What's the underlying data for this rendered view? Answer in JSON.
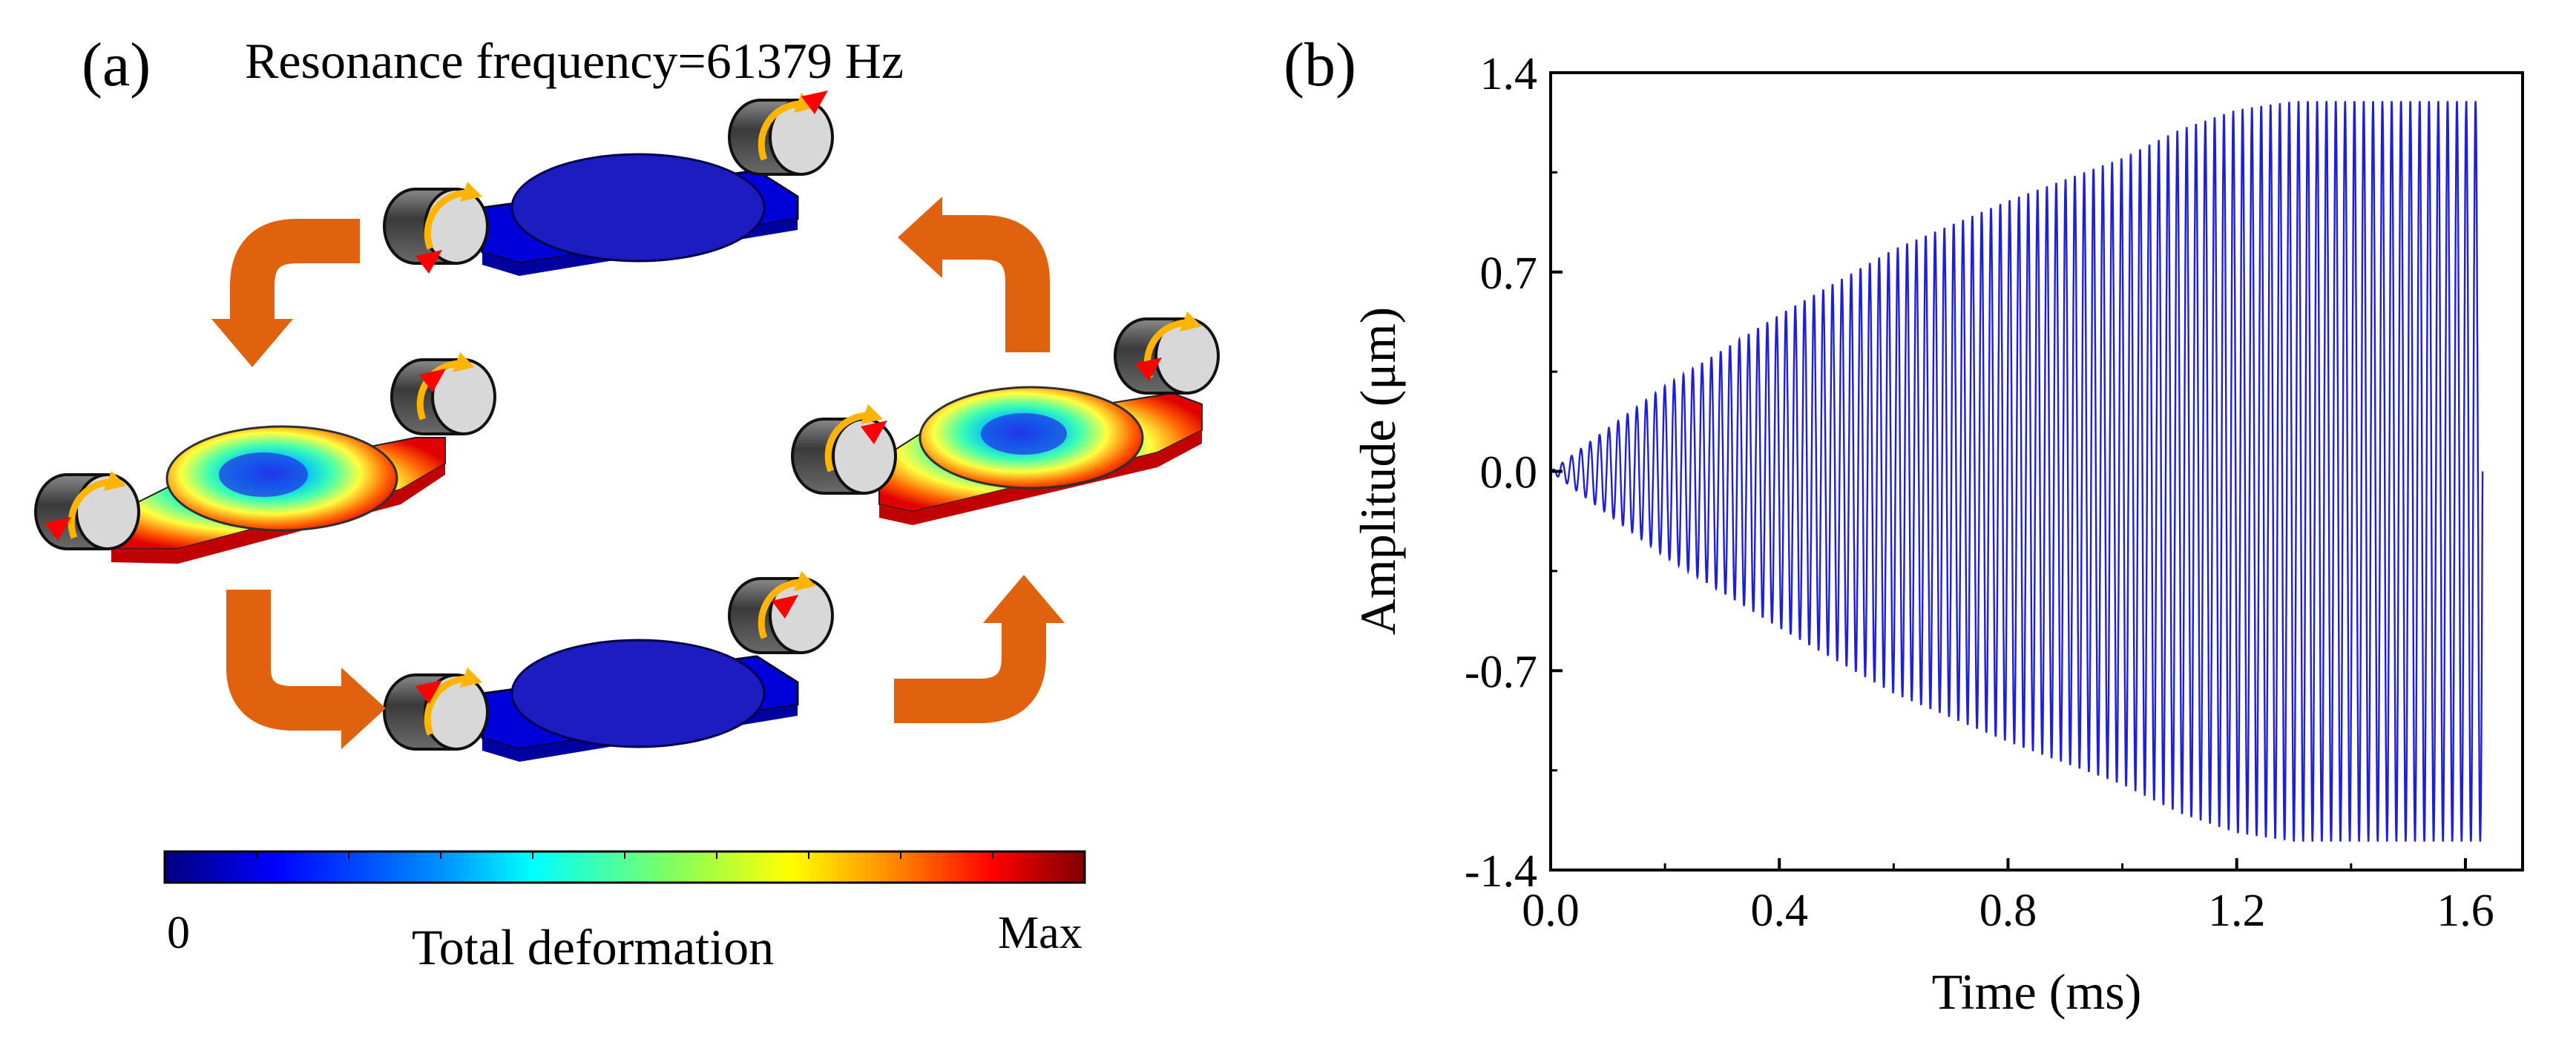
{
  "panel_a": {
    "label": "(a)",
    "title": "Resonance frequency=61379 Hz",
    "colorbar": {
      "min_label": "0",
      "max_label": "Max",
      "title": "Total deformation",
      "colors": [
        "#00007f",
        "#0000ff",
        "#0080ff",
        "#00ffff",
        "#80ff80",
        "#ffff00",
        "#ff8000",
        "#ff0000",
        "#7f0000"
      ]
    },
    "accent_colors": {
      "arrow": "#e0620e",
      "rotation_yellow": "#ffb400",
      "rotation_red": "#ff0000",
      "roller": "#4a4a4a"
    }
  },
  "panel_b": {
    "label": "(b)"
  },
  "chart_data": {
    "type": "line",
    "title": "",
    "xlabel": "Time (ms)",
    "ylabel": "Amplitude (μm)",
    "xlim": [
      0.0,
      1.7
    ],
    "ylim": [
      -1.4,
      1.4
    ],
    "xticks": [
      "0.0",
      "0.4",
      "0.8",
      "1.2",
      "1.6"
    ],
    "yticks": [
      "-1.4",
      "-0.7",
      "0.0",
      "0.7",
      "1.4"
    ],
    "series": [
      {
        "name": "Amplitude",
        "color": "#1f1fd6",
        "description": "oscillation with growing envelope",
        "t_end_ms": 1.63,
        "oscillation_cycles": 100,
        "envelope": {
          "t": [
            0.0,
            0.2,
            0.4,
            0.6,
            0.8,
            1.0,
            1.1,
            1.2,
            1.3,
            1.4,
            1.5,
            1.6,
            1.63
          ],
          "amp": [
            0.0,
            0.3,
            0.55,
            0.78,
            0.95,
            1.1,
            1.2,
            1.27,
            1.3,
            1.3,
            1.3,
            1.3,
            1.3
          ]
        }
      }
    ]
  }
}
